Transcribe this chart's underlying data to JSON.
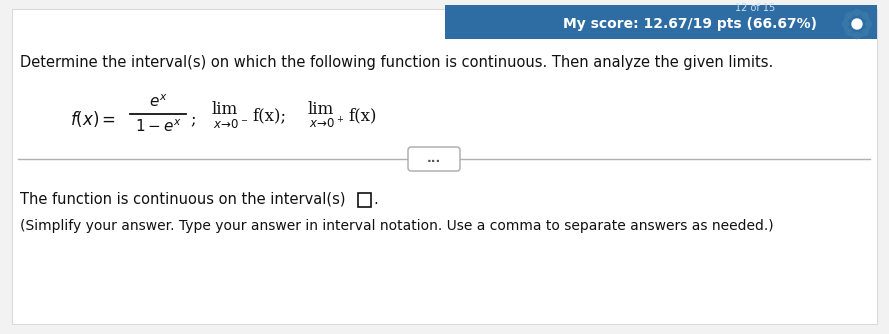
{
  "white_bg": "#f5f5f5",
  "panel_bg": "#ffffff",
  "header_bg": "#2e6da4",
  "header_text": "My score: 12.67/19 pts (66.67%)",
  "header_text_color": "#ffffff",
  "header_fontsize": 10,
  "main_instruction": "Determine the interval(s) on which the following function is continuous. Then analyze the given limits.",
  "main_fontsize": 10.5,
  "answer_line1_pre": "The function is continuous on the interval(s) ",
  "answer_line2": "(Simplify your answer. Type your answer in interval notation. Use a comma to separate answers as needed.)",
  "answer_fontsize": 10.5,
  "separator_color": "#b0b0b0",
  "dots_text": "...",
  "text_color": "#1a1a1a",
  "dark_text": "#111111"
}
